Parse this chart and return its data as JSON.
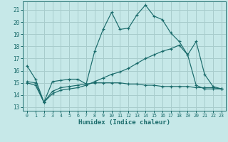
{
  "xlabel": "Humidex (Indice chaleur)",
  "bg_color": "#c6e8e8",
  "grid_color": "#a8cccc",
  "line_color": "#1a6b6b",
  "xlim": [
    -0.5,
    23.5
  ],
  "ylim": [
    12.7,
    21.7
  ],
  "yticks": [
    13,
    14,
    15,
    16,
    17,
    18,
    19,
    20,
    21
  ],
  "xticks": [
    0,
    1,
    2,
    3,
    4,
    5,
    6,
    7,
    8,
    9,
    10,
    11,
    12,
    13,
    14,
    15,
    16,
    17,
    18,
    19,
    20,
    21,
    22,
    23
  ],
  "series1_x": [
    0,
    1,
    2,
    3,
    4,
    5,
    6,
    7,
    8,
    9,
    10,
    11,
    12,
    13,
    14,
    15,
    16,
    17,
    18,
    19,
    20,
    21,
    22,
    23
  ],
  "series1_y": [
    16.4,
    15.3,
    13.4,
    15.1,
    15.2,
    15.3,
    15.3,
    14.9,
    17.6,
    19.4,
    20.8,
    19.4,
    19.5,
    20.6,
    21.4,
    20.5,
    20.2,
    19.1,
    18.4,
    17.3,
    18.4,
    15.7,
    14.7,
    14.5
  ],
  "series2_x": [
    0,
    1,
    2,
    3,
    4,
    5,
    6,
    7,
    8,
    9,
    10,
    11,
    12,
    13,
    14,
    15,
    16,
    17,
    18,
    19,
    20,
    21,
    22,
    23
  ],
  "series2_y": [
    15.1,
    15.0,
    13.4,
    14.3,
    14.6,
    14.7,
    14.8,
    14.9,
    15.0,
    15.0,
    15.0,
    15.0,
    14.9,
    14.9,
    14.8,
    14.8,
    14.7,
    14.7,
    14.7,
    14.7,
    14.6,
    14.6,
    14.6,
    14.5
  ],
  "series3_x": [
    0,
    1,
    2,
    3,
    4,
    5,
    6,
    7,
    8,
    9,
    10,
    11,
    12,
    13,
    14,
    15,
    16,
    17,
    18,
    19,
    20,
    21,
    22,
    23
  ],
  "series3_y": [
    15.0,
    14.8,
    13.4,
    14.1,
    14.4,
    14.5,
    14.6,
    14.8,
    15.1,
    15.4,
    15.7,
    15.9,
    16.2,
    16.6,
    17.0,
    17.3,
    17.6,
    17.8,
    18.1,
    17.3,
    14.8,
    14.5,
    14.5,
    14.5
  ]
}
